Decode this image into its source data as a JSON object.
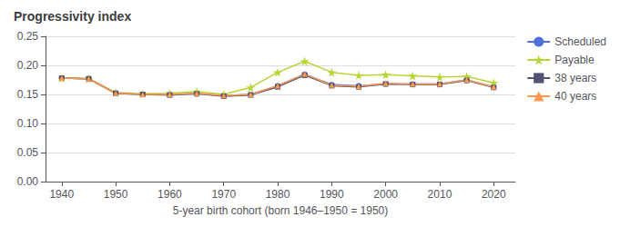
{
  "chart_data": {
    "type": "line",
    "title": "Progressivity index",
    "xlabel": "5-year birth cohort (born 1946–1950 = 1950)",
    "x": [
      1940,
      1945,
      1950,
      1955,
      1960,
      1965,
      1970,
      1975,
      1980,
      1985,
      1990,
      1995,
      2000,
      2005,
      2010,
      2015,
      2020
    ],
    "series": [
      {
        "name": "Scheduled",
        "marker": "circle",
        "values": [
          0.178,
          0.177,
          0.152,
          0.15,
          0.15,
          0.152,
          0.148,
          0.15,
          0.165,
          0.185,
          0.167,
          0.165,
          0.168,
          0.168,
          0.168,
          0.175,
          0.163
        ]
      },
      {
        "name": "Payable",
        "marker": "star",
        "values": [
          0.178,
          0.177,
          0.153,
          0.151,
          0.152,
          0.155,
          0.15,
          0.162,
          0.188,
          0.207,
          0.188,
          0.183,
          0.184,
          0.182,
          0.18,
          0.181,
          0.17
        ]
      },
      {
        "name": "38 years",
        "marker": "square",
        "values": [
          0.178,
          0.177,
          0.152,
          0.15,
          0.149,
          0.151,
          0.147,
          0.149,
          0.163,
          0.183,
          0.165,
          0.163,
          0.168,
          0.167,
          0.167,
          0.174,
          0.162
        ]
      },
      {
        "name": "40 years",
        "marker": "triangle",
        "values": [
          0.178,
          0.177,
          0.152,
          0.15,
          0.15,
          0.152,
          0.148,
          0.15,
          0.165,
          0.185,
          0.166,
          0.164,
          0.169,
          0.168,
          0.168,
          0.175,
          0.163
        ]
      }
    ],
    "xlim": [
      1937,
      2024
    ],
    "xticks": [
      1940,
      1950,
      1960,
      1970,
      1980,
      1990,
      2000,
      2010,
      2020
    ],
    "ylim": [
      0.0,
      0.25
    ],
    "yticks": [
      {
        "value": 0.0,
        "label": "0.00"
      },
      0.05,
      {
        "value": 0.1,
        "label": "0.10"
      },
      0.15,
      {
        "value": 0.2,
        "label": "0.20"
      },
      0.25
    ],
    "grid": true,
    "legend": "right"
  }
}
